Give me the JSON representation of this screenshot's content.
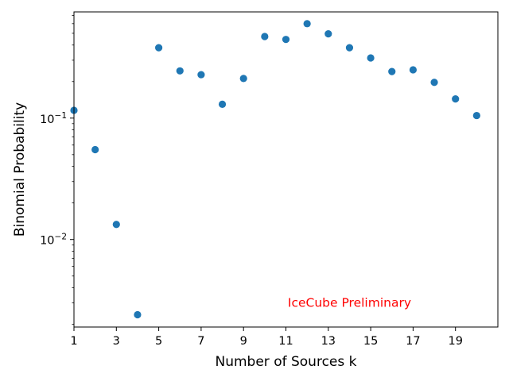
{
  "chart_data": {
    "type": "scatter",
    "title": "",
    "xlabel": "Number of Sources k",
    "ylabel": "Binomial Probability",
    "xscale": "linear",
    "yscale": "log",
    "xlim": [
      1,
      21
    ],
    "ylim": [
      0.0019,
      0.75
    ],
    "xticks": [
      1,
      3,
      5,
      7,
      9,
      11,
      13,
      15,
      17,
      19
    ],
    "xtick_labels": [
      "1",
      "3",
      "5",
      "7",
      "9",
      "11",
      "13",
      "15",
      "17",
      "19"
    ],
    "yticks_major": [
      {
        "value": 0.01,
        "base": "10",
        "exp": "−2"
      },
      {
        "value": 0.1,
        "base": "10",
        "exp": "−1"
      }
    ],
    "grid": false,
    "marker_color": "#1f77b4",
    "series": [
      {
        "name": "binomial probability",
        "x": [
          1,
          2,
          3,
          4,
          5,
          6,
          7,
          8,
          9,
          10,
          11,
          12,
          13,
          14,
          15,
          16,
          17,
          18,
          19,
          20
        ],
        "y": [
          0.116,
          0.055,
          0.0133,
          0.0024,
          0.38,
          0.245,
          0.228,
          0.13,
          0.212,
          0.47,
          0.445,
          0.6,
          0.495,
          0.38,
          0.313,
          0.242,
          0.25,
          0.197,
          0.144,
          0.105
        ]
      }
    ],
    "annotation": {
      "text": "IceCube Preliminary",
      "color": "#ff0000",
      "x": 14,
      "y": 0.003
    }
  }
}
